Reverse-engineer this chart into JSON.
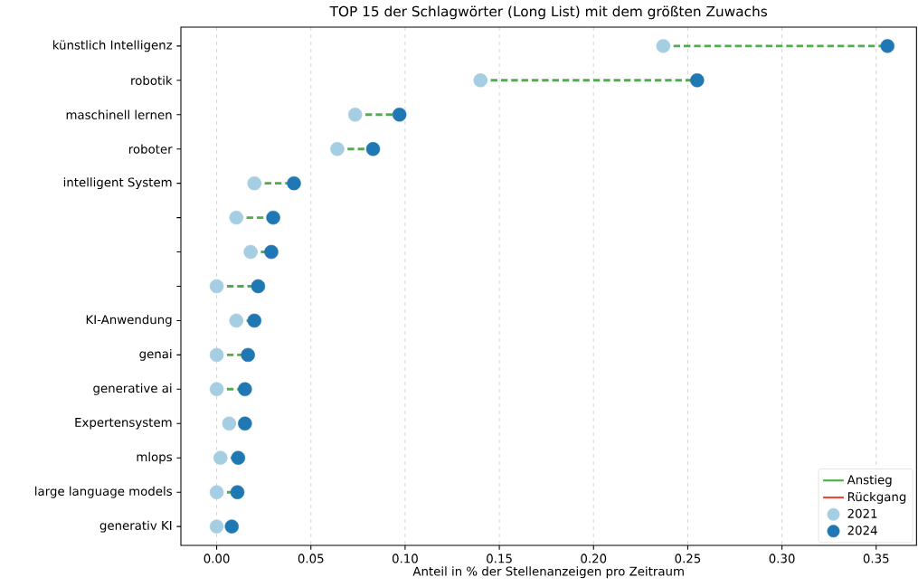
{
  "chart_data": {
    "type": "scatter",
    "orientation": "horizontal",
    "title": "TOP 15 der Schlagwörter (Long List) mit dem größten Zuwachs",
    "xlabel": "Anteil in % der Stellenanzeigen pro Zeitraum",
    "categories": [
      "künstlich Intelligenz",
      "robotik",
      "maschinell lernen",
      "roboter",
      "intelligent System",
      null,
      null,
      null,
      "KI-Anwendung",
      "genai",
      "generative ai",
      "Expertensystem",
      "mlops",
      "large language models",
      "generativ KI"
    ],
    "series": [
      {
        "name": "Anstieg",
        "type": "line",
        "color": "#4daf4a",
        "line_style": "dashed",
        "values": [
          null,
          null,
          null,
          null,
          null,
          null,
          null,
          null,
          null,
          null,
          null,
          null,
          null,
          null,
          null
        ]
      },
      {
        "name": "Rückgang",
        "type": "line",
        "color": "#f44336",
        "line_style": "dashed",
        "values": [
          null,
          null,
          null,
          null,
          null,
          null,
          null,
          null,
          null,
          null,
          null,
          null,
          null,
          null,
          null
        ]
      },
      {
        "name": "2021",
        "color": "#a6cee3",
        "values": [
          0.237,
          0.14,
          0.0735,
          0.064,
          0.02,
          0.0104,
          0.018,
          0.0,
          0.0104,
          0.0,
          0.0,
          0.0066,
          0.002,
          0.0,
          0.0
        ]
      },
      {
        "name": "2024",
        "color": "#1f78b4",
        "values": [
          0.356,
          0.255,
          0.097,
          0.083,
          0.041,
          0.03,
          0.029,
          0.022,
          0.02,
          0.0166,
          0.015,
          0.015,
          0.0114,
          0.011,
          0.008
        ]
      }
    ],
    "xlim": [
      -0.019,
      0.3714
    ],
    "xticks": [
      {
        "value": 0,
        "label": "0.00"
      },
      {
        "value": 0.05,
        "label": "0.05"
      },
      {
        "value": 0.1,
        "label": "0.10"
      },
      {
        "value": 0.15,
        "label": "0.15"
      },
      {
        "value": 0.2,
        "label": "0.20"
      },
      {
        "value": 0.25,
        "label": "0.25"
      },
      {
        "value": 0.3,
        "label": "0.30"
      },
      {
        "value": 0.35,
        "label": "0.35"
      }
    ],
    "grid": "x",
    "legend": "bottom right",
    "marker": "circle"
  }
}
